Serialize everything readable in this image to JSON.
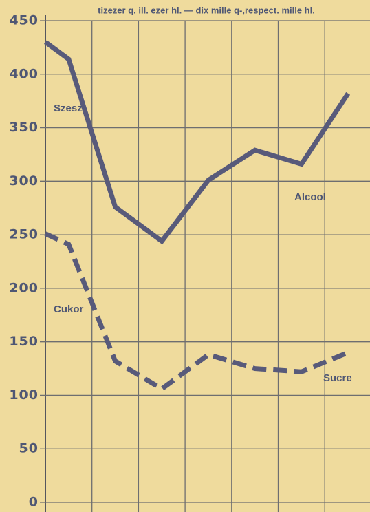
{
  "chart_data": {
    "type": "line",
    "title": "tizezer q. ill. ezer hl. — dix mille q-,respect. mille hl.",
    "x": [
      0,
      0.5,
      1.5,
      2.5,
      3.5,
      4.5,
      5.5,
      6.5
    ],
    "xlim": [
      0,
      7
    ],
    "ylim": [
      0,
      450
    ],
    "yticks": [
      0,
      50,
      100,
      150,
      200,
      250,
      300,
      350,
      400,
      450
    ],
    "grid": true,
    "series": [
      {
        "name": "Szesz",
        "name_fr": "Alcool",
        "color": "#585a7a",
        "dash": false,
        "values": [
          430,
          414,
          276,
          244,
          301,
          329,
          316,
          382
        ]
      },
      {
        "name": "Cukor",
        "name_fr": "Sucre",
        "color": "#585a7a",
        "dash": true,
        "values": [
          251,
          241,
          132,
          106,
          138,
          125,
          122,
          140
        ]
      }
    ]
  }
}
